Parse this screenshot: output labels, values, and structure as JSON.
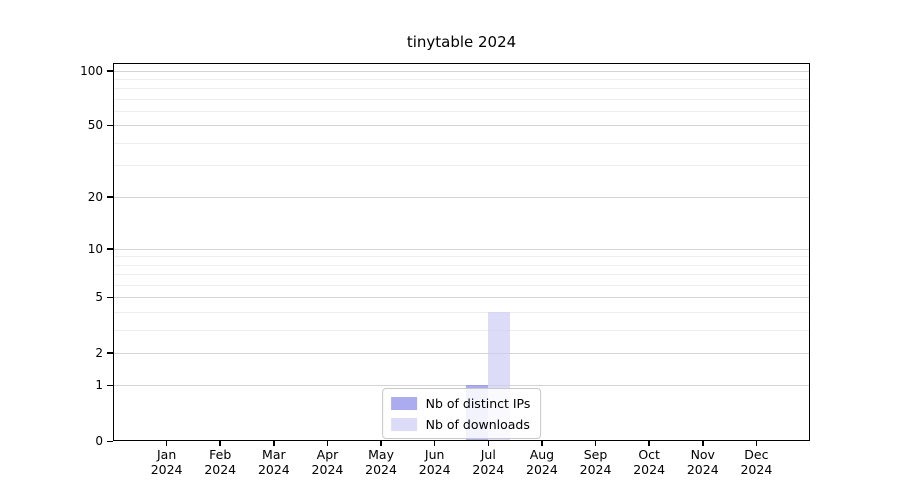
{
  "chart_data": {
    "type": "bar",
    "title": "tinytable 2024",
    "year": "2024",
    "months": [
      "Jan",
      "Feb",
      "Mar",
      "Apr",
      "May",
      "Jun",
      "Jul",
      "Aug",
      "Sep",
      "Oct",
      "Nov",
      "Dec"
    ],
    "categories": [
      "Jan 2024",
      "Feb 2024",
      "Mar 2024",
      "Apr 2024",
      "May 2024",
      "Jun 2024",
      "Jul 2024",
      "Aug 2024",
      "Sep 2024",
      "Oct 2024",
      "Nov 2024",
      "Dec 2024"
    ],
    "series": [
      {
        "name": "Nb of distinct IPs",
        "color": "#a9a9ef",
        "fill": "rgba(136,136,232,0.7)",
        "values": [
          0,
          0,
          0,
          0,
          0,
          0,
          1,
          0,
          0,
          0,
          0,
          0
        ]
      },
      {
        "name": "Nb of downloads",
        "color": "#dcdcf8",
        "fill": "rgba(205,205,245,0.7)",
        "values": [
          0,
          0,
          0,
          0,
          0,
          0,
          4,
          0,
          0,
          0,
          0,
          0
        ]
      }
    ],
    "y_axis": {
      "scale": "log1p",
      "max": 110,
      "major_ticks": [
        0,
        1,
        2,
        5,
        10,
        20,
        50,
        100
      ],
      "minor_ticks": [
        3,
        4,
        6,
        7,
        8,
        9,
        30,
        40,
        60,
        70,
        80,
        90
      ]
    },
    "x_axis": {
      "label_line2": "2024"
    },
    "legend": {
      "position": "bottom-center"
    },
    "grid": {
      "major_color": "#d4d4d4",
      "minor_color": "#ededed"
    },
    "frame_color": "#000000",
    "background": "#ffffff"
  }
}
